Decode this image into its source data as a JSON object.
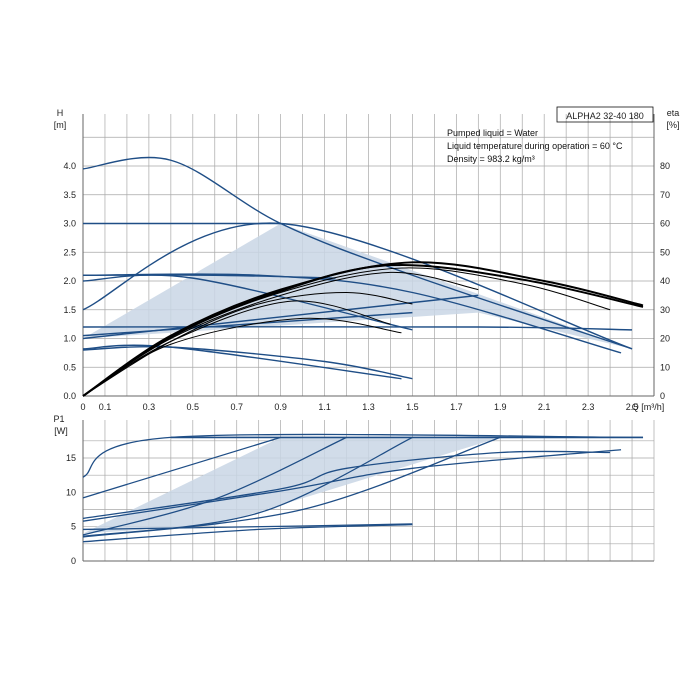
{
  "chart_data": [
    {
      "type": "line",
      "pump_label": "ALPHA2 32-40 180",
      "info_lines": [
        "Pumped liquid = Water",
        "Liquid temperature during operation = 60 °C",
        "Density = 983.2 kg/m³"
      ],
      "ylabel_left_top": "H",
      "ylabel_left_unit": "[m]",
      "ylabel_right_top": "eta",
      "ylabel_right_unit": "[%]",
      "xlabel": "Q [m³/h]",
      "x_ticks": [
        "0",
        "0.1",
        "0.3",
        "0.5",
        "0.7",
        "0.9",
        "1.1",
        "1.3",
        "1.5",
        "1.7",
        "1.9",
        "2.1",
        "2.3",
        "2.5"
      ],
      "y_ticks": [
        "0.0",
        "0.5",
        "1.0",
        "1.5",
        "2.0",
        "2.5",
        "3.0",
        "3.5",
        "4.0"
      ],
      "y2_ticks": [
        "0",
        "10",
        "20",
        "30",
        "40",
        "50",
        "60",
        "70",
        "80"
      ],
      "xlim": [
        0,
        2.6
      ],
      "ylim": [
        0,
        4.5
      ],
      "y2lim": [
        0,
        90
      ],
      "shaded_region": [
        [
          0,
          1.0
        ],
        [
          0.9,
          3.0
        ],
        [
          2.5,
          0.82
        ],
        [
          1.8,
          1.45
        ],
        [
          0,
          1.0
        ]
      ],
      "head_series": [
        {
          "x": [
            0,
            0.4,
            0.9,
            1.5,
            2.5
          ],
          "y": [
            3.95,
            4.1,
            3.0,
            2.1,
            0.82
          ]
        },
        {
          "x": [
            0,
            0.9
          ],
          "y": [
            3.0,
            3.0
          ]
        },
        {
          "x": [
            0,
            0.9,
            2.5
          ],
          "y": [
            1.5,
            3.0,
            0.82
          ]
        },
        {
          "x": [
            0,
            0.8,
            1.5,
            2.45
          ],
          "y": [
            2.1,
            2.1,
            1.8,
            0.75
          ]
        },
        {
          "x": [
            0,
            0.6,
            1.15
          ],
          "y": [
            2.1,
            2.1,
            2.05
          ]
        },
        {
          "x": [
            0,
            0.5,
            1.5
          ],
          "y": [
            2.0,
            2.05,
            1.15
          ]
        },
        {
          "x": [
            0,
            1.8,
            2.5
          ],
          "y": [
            1.2,
            1.2,
            1.15
          ]
        },
        {
          "x": [
            0,
            1.8
          ],
          "y": [
            1.0,
            1.75
          ]
        },
        {
          "x": [
            0,
            1.5
          ],
          "y": [
            1.05,
            1.45
          ]
        },
        {
          "x": [
            0,
            0.4,
            1.1,
            1.5
          ],
          "y": [
            0.8,
            0.85,
            0.6,
            0.3
          ]
        },
        {
          "x": [
            0,
            0.4,
            1.45
          ],
          "y": [
            0.82,
            0.85,
            0.3
          ]
        }
      ],
      "efficiency_curves": [
        {
          "x": [
            0,
            0.4,
            0.9,
            1.5,
            2.1,
            2.55
          ],
          "y": [
            0,
            21,
            37,
            46.5,
            40,
            31.5
          ]
        },
        {
          "x": [
            0,
            0.4,
            0.9,
            1.4,
            2.0,
            2.55
          ],
          "y": [
            0,
            20.5,
            36.5,
            45.5,
            40.5,
            31
          ]
        },
        {
          "x": [
            0,
            0.4,
            0.9,
            1.45,
            2.0,
            2.4
          ],
          "y": [
            0,
            20.5,
            36,
            44.5,
            39,
            30
          ]
        },
        {
          "x": [
            0,
            0.4,
            0.9,
            1.4,
            1.8
          ],
          "y": [
            0,
            20,
            35,
            43,
            37
          ]
        },
        {
          "x": [
            0,
            0.4,
            0.8,
            1.2,
            1.5
          ],
          "y": [
            0,
            19,
            32,
            36,
            32
          ]
        },
        {
          "x": [
            0,
            0.4,
            0.95,
            1.4
          ],
          "y": [
            0,
            19,
            33,
            25
          ]
        },
        {
          "x": [
            0,
            0.4,
            1.0,
            1.45
          ],
          "y": [
            0,
            18,
            27,
            22
          ]
        }
      ],
      "grid": true
    },
    {
      "type": "line",
      "ylabel_top": "P1",
      "ylabel_unit": "[W]",
      "y_ticks": [
        "0",
        "5",
        "10",
        "15"
      ],
      "ylim": [
        0,
        20
      ],
      "max_power": 18,
      "shaded_region": [
        [
          0,
          4.0
        ],
        [
          0.9,
          18
        ],
        [
          1.9,
          18
        ],
        [
          0.6,
          5.2
        ],
        [
          0,
          4.0
        ]
      ],
      "power_series": [
        {
          "x": [
            0,
            0.4,
            2.55
          ],
          "y": [
            12.2,
            18,
            18
          ]
        },
        {
          "x": [
            0,
            0.9
          ],
          "y": [
            9.2,
            18
          ]
        },
        {
          "x": [
            0,
            0.9,
            1.2,
            1.9,
            2.4
          ],
          "y": [
            6.2,
            10.5,
            13.5,
            15.8,
            15.8
          ]
        },
        {
          "x": [
            0,
            0.9,
            1.5,
            2.45
          ],
          "y": [
            5.8,
            10.2,
            13.5,
            16.2
          ]
        },
        {
          "x": [
            0,
            0.6,
            1.2
          ],
          "y": [
            3.8,
            9.0,
            18
          ]
        },
        {
          "x": [
            0,
            0.8,
            1.5
          ],
          "y": [
            3.6,
            7.0,
            18
          ]
        },
        {
          "x": [
            0,
            1.0,
            1.9
          ],
          "y": [
            3.5,
            7.5,
            18
          ]
        },
        {
          "x": [
            0,
            1.0,
            1.5
          ],
          "y": [
            4.6,
            5.1,
            5.4
          ]
        },
        {
          "x": [
            0,
            0.8,
            1.5
          ],
          "y": [
            2.8,
            4.6,
            5.3
          ]
        }
      ],
      "grid": true
    }
  ]
}
